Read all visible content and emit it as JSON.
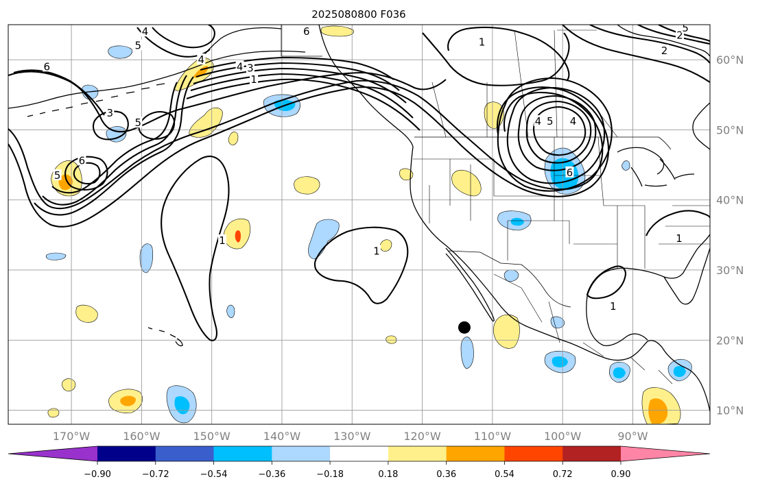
{
  "title": "2025080800 F036",
  "map": {
    "lon_range": [
      -179,
      -79
    ],
    "lat_range": [
      8,
      65
    ],
    "lon_ticks": [
      {
        "lon": -170,
        "label": "170°W"
      },
      {
        "lon": -160,
        "label": "160°W"
      },
      {
        "lon": -150,
        "label": "150°W"
      },
      {
        "lon": -140,
        "label": "140°W"
      },
      {
        "lon": -130,
        "label": "130°W"
      },
      {
        "lon": -120,
        "label": "120°W"
      },
      {
        "lon": -110,
        "label": "110°W"
      },
      {
        "lon": -100,
        "label": "100°W"
      },
      {
        "lon": -90,
        "label": "90°W"
      }
    ],
    "lat_ticks": [
      {
        "lat": 60,
        "label": "60°N"
      },
      {
        "lat": 50,
        "label": "50°N"
      },
      {
        "lat": 40,
        "label": "40°N"
      },
      {
        "lat": 30,
        "label": "30°N"
      },
      {
        "lat": 20,
        "label": "20°N"
      },
      {
        "lat": 10,
        "label": "10°N"
      }
    ],
    "marker": {
      "lon": -114,
      "lat": 21.8
    },
    "colors": {
      "land_line": "#000000",
      "grid": "#9a9a9a",
      "tick_label": "#808080"
    }
  },
  "colorbar": {
    "bins": [
      {
        "color": "#9932cc"
      },
      {
        "color": "#00008b"
      },
      {
        "color": "#3a5fcd"
      },
      {
        "color": "#00bfff"
      },
      {
        "color": "#add8ff"
      },
      {
        "color": "#ffffff"
      },
      {
        "color": "#fff08c"
      },
      {
        "color": "#ffa500"
      },
      {
        "color": "#ff4500"
      },
      {
        "color": "#b22222"
      },
      {
        "color": "#ff85a6"
      }
    ],
    "labels": [
      "−0.90",
      "−0.72",
      "−0.54",
      "−0.36",
      "−0.18",
      "0.18",
      "0.36",
      "0.54",
      "0.72",
      "0.90"
    ]
  },
  "contour_labels": [
    {
      "text": "4",
      "lon": -159.5,
      "lat": 64.0
    },
    {
      "text": "5",
      "lon": -160.5,
      "lat": 62.0
    },
    {
      "text": "6",
      "lon": -173.5,
      "lat": 59.0
    },
    {
      "text": "4",
      "lon": -151.5,
      "lat": 60.0
    },
    {
      "text": "4",
      "lon": -146.0,
      "lat": 59.0
    },
    {
      "text": "3",
      "lon": -144.5,
      "lat": 58.8
    },
    {
      "text": "1",
      "lon": -144.0,
      "lat": 57.2
    },
    {
      "text": "3",
      "lon": -164.5,
      "lat": 52.4
    },
    {
      "text": "5",
      "lon": -160.5,
      "lat": 51.0
    },
    {
      "text": "6",
      "lon": -168.5,
      "lat": 45.6
    },
    {
      "text": "5",
      "lon": -172.0,
      "lat": 43.5
    },
    {
      "text": "1",
      "lon": -148.5,
      "lat": 34.2
    },
    {
      "text": "1",
      "lon": -126.5,
      "lat": 32.7
    },
    {
      "text": "6",
      "lon": -136.5,
      "lat": 64.0
    },
    {
      "text": "1",
      "lon": -111.5,
      "lat": 62.5
    },
    {
      "text": "4",
      "lon": -103.5,
      "lat": 51.2
    },
    {
      "text": "5",
      "lon": -101.8,
      "lat": 51.2
    },
    {
      "text": "4",
      "lon": -98.5,
      "lat": 51.2
    },
    {
      "text": "6",
      "lon": -99.0,
      "lat": 43.9
    },
    {
      "text": "2",
      "lon": -85.5,
      "lat": 61.3
    },
    {
      "text": "2",
      "lon": -83.3,
      "lat": 63.5
    },
    {
      "text": "5",
      "lon": -82.5,
      "lat": 64.5
    },
    {
      "text": "1",
      "lon": -83.4,
      "lat": 34.5
    },
    {
      "text": "1",
      "lon": -92.8,
      "lat": 24.8
    }
  ]
}
